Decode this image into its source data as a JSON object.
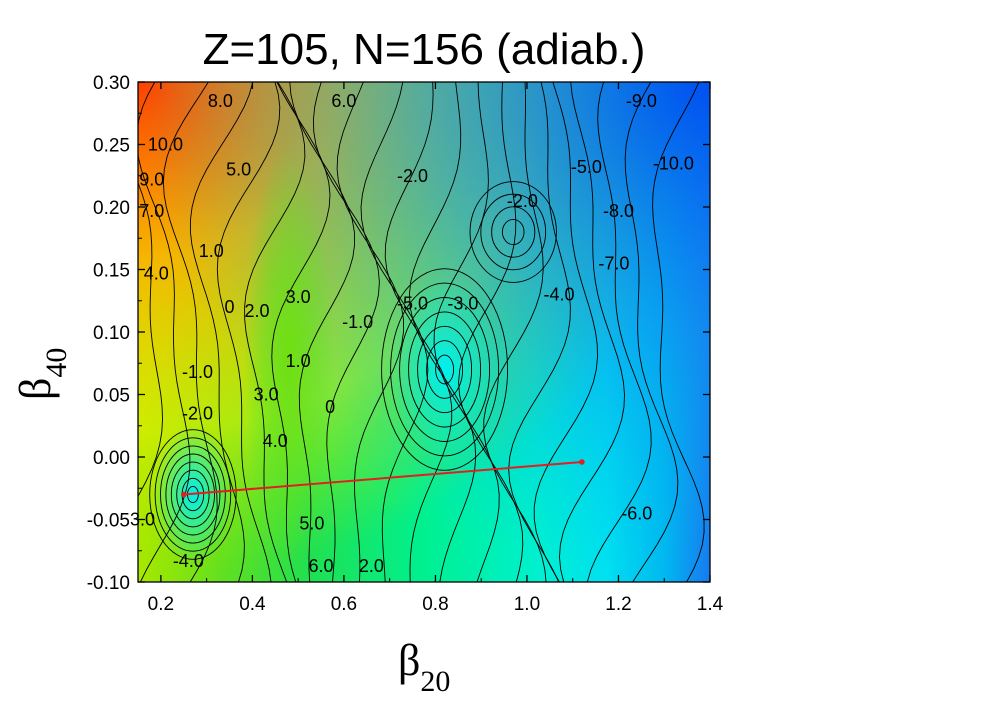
{
  "chart_data": {
    "type": "heatmap",
    "title": "Z=105, N=156 (adiab.)",
    "xlabel": {
      "base": "β",
      "sub": "20"
    },
    "ylabel": {
      "base": "β",
      "sub": "40"
    },
    "xlim": [
      0.15,
      1.4
    ],
    "ylim": [
      -0.1,
      0.3
    ],
    "xticks": [
      "0.2",
      "0.4",
      "0.6",
      "0.8",
      "1.0",
      "1.2",
      "1.4"
    ],
    "yticks": [
      "-0.10",
      "-0.05",
      "0.00",
      "0.05",
      "0.10",
      "0.15",
      "0.20",
      "0.25",
      "0.30"
    ],
    "colormap": [
      "#00e8ff",
      "#00f0c8",
      "#00e890",
      "#30e040",
      "#a0e800",
      "#e8e800",
      "#ffa000",
      "#ff4000"
    ],
    "path": {
      "color": "#e02020",
      "points": [
        [
          0.25,
          -0.03
        ],
        [
          1.12,
          -0.004
        ]
      ]
    },
    "contour_labels": [
      {
        "text": "8.0",
        "x": 0.33,
        "y": 0.285
      },
      {
        "text": "6.0",
        "x": 0.6,
        "y": 0.285
      },
      {
        "text": "-9.0",
        "x": 1.25,
        "y": 0.285
      },
      {
        "text": "10.0",
        "x": 0.21,
        "y": 0.25
      },
      {
        "text": "5.0",
        "x": 0.37,
        "y": 0.23
      },
      {
        "text": "-2.0",
        "x": 0.75,
        "y": 0.225
      },
      {
        "text": "-5.0",
        "x": 1.13,
        "y": 0.232
      },
      {
        "text": "-10.0",
        "x": 1.32,
        "y": 0.235
      },
      {
        "text": "9.0",
        "x": 0.18,
        "y": 0.222
      },
      {
        "text": "-2.0",
        "x": 0.99,
        "y": 0.205
      },
      {
        "text": "7.0",
        "x": 0.18,
        "y": 0.197
      },
      {
        "text": "-8.0",
        "x": 1.2,
        "y": 0.197
      },
      {
        "text": "1.0",
        "x": 0.31,
        "y": 0.165
      },
      {
        "text": "-7.0",
        "x": 1.19,
        "y": 0.155
      },
      {
        "text": "4.0",
        "x": 0.19,
        "y": 0.147
      },
      {
        "text": "3.0",
        "x": 0.5,
        "y": 0.128
      },
      {
        "text": "-4.0",
        "x": 1.07,
        "y": 0.13
      },
      {
        "text": "0",
        "x": 0.35,
        "y": 0.12
      },
      {
        "text": "2.0",
        "x": 0.41,
        "y": 0.117
      },
      {
        "text": "-5.0",
        "x": 0.75,
        "y": 0.123
      },
      {
        "text": "-3.0",
        "x": 0.86,
        "y": 0.123
      },
      {
        "text": "-1.0",
        "x": 0.63,
        "y": 0.108
      },
      {
        "text": "1.0",
        "x": 0.5,
        "y": 0.077
      },
      {
        "text": "-1.0",
        "x": 0.28,
        "y": 0.068
      },
      {
        "text": "3.0",
        "x": 0.43,
        "y": 0.05
      },
      {
        "text": "0",
        "x": 0.57,
        "y": 0.04
      },
      {
        "text": "-2.0",
        "x": 0.28,
        "y": 0.035
      },
      {
        "text": "4.0",
        "x": 0.45,
        "y": 0.013
      },
      {
        "text": "-6.0",
        "x": 1.24,
        "y": -0.045
      },
      {
        "text": "3.0",
        "x": 0.16,
        "y": -0.05
      },
      {
        "text": "5.0",
        "x": 0.53,
        "y": -0.053
      },
      {
        "text": "-4.0",
        "x": 0.26,
        "y": -0.083
      },
      {
        "text": "6.0",
        "x": 0.55,
        "y": -0.087
      },
      {
        "text": "2.0",
        "x": 0.66,
        "y": -0.087
      }
    ]
  }
}
